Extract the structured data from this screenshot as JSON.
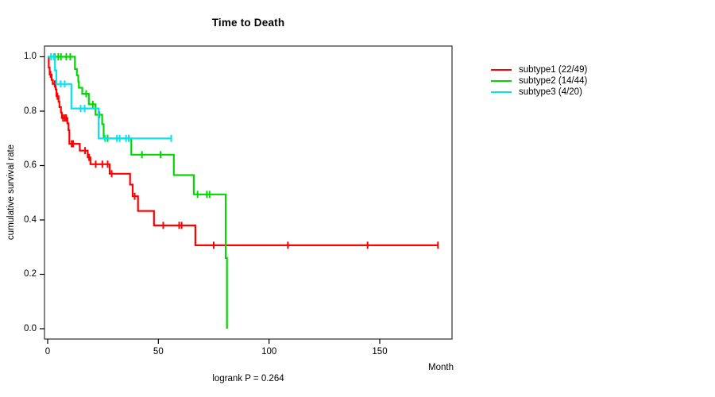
{
  "page": {
    "background": "#FFFFFF",
    "frame_color": "#3F3F3F"
  },
  "chart_data": {
    "type": "line",
    "variant": "kaplan-meier-step",
    "title": "Time to Death",
    "xlabel": "Month",
    "ylabel": "cumulative survival rate",
    "annotation": "logrank P = 0.264",
    "grid": false,
    "legend_position": "right-outside",
    "xlim": [
      0,
      183
    ],
    "ylim": [
      0.0,
      1.0
    ],
    "x_tick_values": [
      0,
      50,
      100,
      150
    ],
    "x_tick_labels": [
      "0",
      "50",
      "100",
      "150"
    ],
    "y_tick_values": [
      0.0,
      0.2,
      0.4,
      0.6,
      0.8,
      1.0
    ],
    "y_tick_labels": [
      "0.0",
      "0.2",
      "0.4",
      "0.6",
      "0.8",
      "1.0"
    ],
    "series": [
      {
        "name": "subtype1",
        "legend_label": "subtype1 (22/49)",
        "color": "#FF0000",
        "start": [
          0,
          1.0
        ],
        "end_month": 176.3,
        "steps": [
          [
            0.5,
            0.96
          ],
          [
            0.9,
            0.935
          ],
          [
            1.8,
            0.915
          ],
          [
            2.3,
            0.9
          ],
          [
            3.6,
            0.88
          ],
          [
            4.0,
            0.855
          ],
          [
            4.9,
            0.835
          ],
          [
            5.3,
            0.815
          ],
          [
            6.0,
            0.795
          ],
          [
            6.4,
            0.775
          ],
          [
            8.9,
            0.755
          ],
          [
            9.4,
            0.73
          ],
          [
            9.8,
            0.68
          ],
          [
            14.5,
            0.655
          ],
          [
            18.1,
            0.63
          ],
          [
            19.3,
            0.605
          ],
          [
            28.0,
            0.57
          ],
          [
            37.2,
            0.53
          ],
          [
            38.4,
            0.487
          ],
          [
            40.8,
            0.433
          ],
          [
            48.0,
            0.38
          ],
          [
            66.7,
            0.307
          ]
        ],
        "censors": [
          [
            1.3,
            0.935
          ],
          [
            3.2,
            0.9
          ],
          [
            4.4,
            0.855
          ],
          [
            6.9,
            0.775
          ],
          [
            7.7,
            0.775
          ],
          [
            8.4,
            0.775
          ],
          [
            10.8,
            0.68
          ],
          [
            11.5,
            0.68
          ],
          [
            16.9,
            0.655
          ],
          [
            18.7,
            0.63
          ],
          [
            21.7,
            0.605
          ],
          [
            24.7,
            0.605
          ],
          [
            27.1,
            0.605
          ],
          [
            28.9,
            0.57
          ],
          [
            39.3,
            0.487
          ],
          [
            52.2,
            0.38
          ],
          [
            59.4,
            0.38
          ],
          [
            60.5,
            0.38
          ],
          [
            75.0,
            0.307
          ],
          [
            108.5,
            0.307
          ],
          [
            144.5,
            0.307
          ],
          [
            176.3,
            0.307
          ]
        ]
      },
      {
        "name": "subtype2",
        "legend_label": "subtype2 (14/44)",
        "color": "#00D800",
        "start": [
          0,
          1.0
        ],
        "end_month": 81.0,
        "steps": [
          [
            12.3,
            0.955
          ],
          [
            13.2,
            0.932
          ],
          [
            13.8,
            0.909
          ],
          [
            14.1,
            0.886
          ],
          [
            15.6,
            0.864
          ],
          [
            18.6,
            0.825
          ],
          [
            21.6,
            0.787
          ],
          [
            24.6,
            0.752
          ],
          [
            25.3,
            0.7
          ],
          [
            37.8,
            0.64
          ],
          [
            57.0,
            0.565
          ],
          [
            66.0,
            0.494
          ],
          [
            80.4,
            0.26
          ],
          [
            81.0,
            0.0
          ]
        ],
        "censors": [
          [
            3.2,
            1.0
          ],
          [
            4.8,
            1.0
          ],
          [
            6.0,
            1.0
          ],
          [
            8.4,
            1.0
          ],
          [
            10.2,
            1.0
          ],
          [
            17.4,
            0.864
          ],
          [
            20.4,
            0.825
          ],
          [
            23.4,
            0.787
          ],
          [
            27.1,
            0.7
          ],
          [
            42.6,
            0.64
          ],
          [
            51.0,
            0.64
          ],
          [
            67.7,
            0.494
          ],
          [
            71.9,
            0.494
          ],
          [
            73.1,
            0.494
          ]
        ]
      },
      {
        "name": "subtype3",
        "legend_label": "subtype3 (4/20)",
        "color": "#00E5EE",
        "start": [
          0,
          1.0
        ],
        "end_month": 55.8,
        "steps": [
          [
            3.3,
            0.95
          ],
          [
            3.9,
            0.9
          ],
          [
            10.7,
            0.81
          ],
          [
            23.0,
            0.7
          ]
        ],
        "censors": [
          [
            1.5,
            1.0
          ],
          [
            2.8,
            1.0
          ],
          [
            5.9,
            0.9
          ],
          [
            7.7,
            0.9
          ],
          [
            14.9,
            0.81
          ],
          [
            16.7,
            0.81
          ],
          [
            25.9,
            0.7
          ],
          [
            31.3,
            0.7
          ],
          [
            32.5,
            0.7
          ],
          [
            35.4,
            0.7
          ],
          [
            36.6,
            0.7
          ],
          [
            55.8,
            0.7
          ]
        ]
      }
    ]
  }
}
